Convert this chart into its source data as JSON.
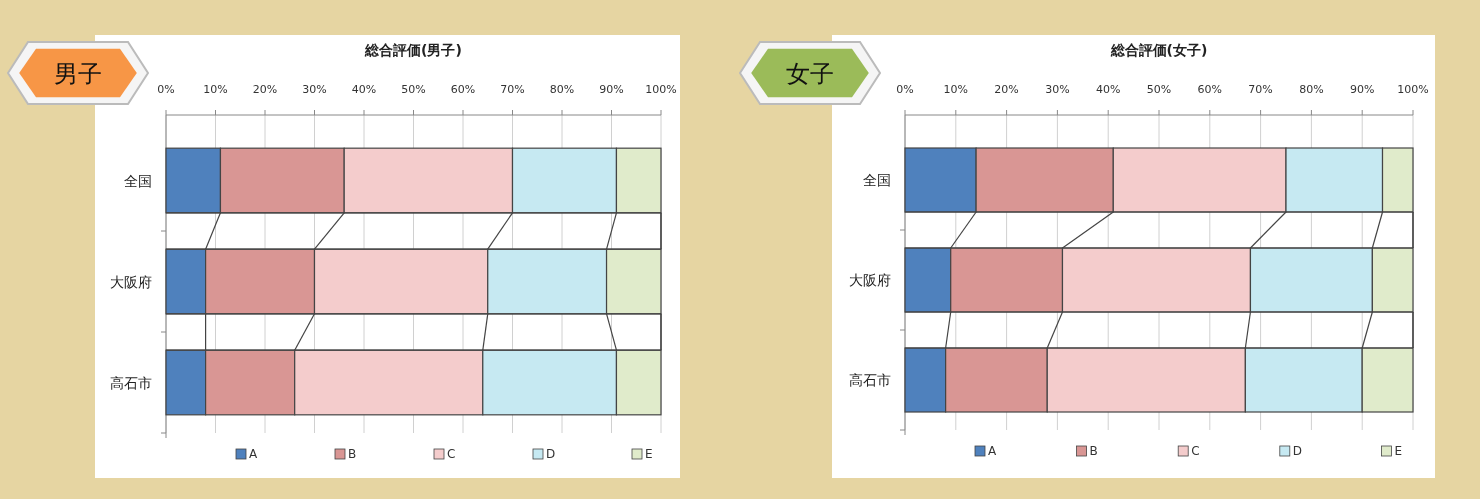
{
  "chart_data": [
    {
      "type": "bar",
      "orientation": "horizontal",
      "stacked": true,
      "title": "総合評価(男子)",
      "subtitle": "男子",
      "categories": [
        "全国",
        "大阪府",
        "高石市"
      ],
      "series": [
        {
          "name": "A",
          "color": "#4f81bd",
          "values": [
            11,
            8,
            8
          ]
        },
        {
          "name": "B",
          "color": "#d99694",
          "values": [
            25,
            22,
            18
          ]
        },
        {
          "name": "C",
          "color": "#f4cccc",
          "values": [
            34,
            35,
            38
          ]
        },
        {
          "name": "D",
          "color": "#c6e9f2",
          "values": [
            21,
            24,
            27
          ]
        },
        {
          "name": "E",
          "color": "#e0ebcb",
          "values": [
            9,
            11,
            9
          ]
        }
      ],
      "xlim": [
        0,
        100
      ],
      "xticks": [
        {
          "value": 0,
          "label": "0%"
        },
        {
          "value": 10,
          "label": "10%"
        },
        {
          "value": 20,
          "label": "20%"
        },
        {
          "value": 30,
          "label": "30%"
        },
        {
          "value": 40,
          "label": "40%"
        },
        {
          "value": 50,
          "label": "50%"
        },
        {
          "value": 60,
          "label": "60%"
        },
        {
          "value": 70,
          "label": "70%"
        },
        {
          "value": 80,
          "label": "80%"
        },
        {
          "value": 90,
          "label": "90%"
        },
        {
          "value": 100,
          "label": "100%"
        }
      ],
      "grid": "x",
      "legend": "bottom"
    },
    {
      "type": "bar",
      "orientation": "horizontal",
      "stacked": true,
      "title": "総合評価(女子)",
      "subtitle": "女子",
      "categories": [
        "全国",
        "大阪府",
        "高石市"
      ],
      "series": [
        {
          "name": "A",
          "color": "#4f81bd",
          "values": [
            14,
            9,
            8
          ]
        },
        {
          "name": "B",
          "color": "#d99694",
          "values": [
            27,
            22,
            20
          ]
        },
        {
          "name": "C",
          "color": "#f4cccc",
          "values": [
            34,
            37,
            39
          ]
        },
        {
          "name": "D",
          "color": "#c6e9f2",
          "values": [
            19,
            24,
            23
          ]
        },
        {
          "name": "E",
          "color": "#e0ebcb",
          "values": [
            6,
            8,
            10
          ]
        }
      ],
      "xlim": [
        0,
        100
      ],
      "xticks": [
        {
          "value": 0,
          "label": "0%"
        },
        {
          "value": 10,
          "label": "10%"
        },
        {
          "value": 20,
          "label": "20%"
        },
        {
          "value": 30,
          "label": "30%"
        },
        {
          "value": 40,
          "label": "40%"
        },
        {
          "value": 50,
          "label": "50%"
        },
        {
          "value": 60,
          "label": "60%"
        },
        {
          "value": 70,
          "label": "70%"
        },
        {
          "value": 80,
          "label": "80%"
        },
        {
          "value": 90,
          "label": "90%"
        },
        {
          "value": 100,
          "label": "100%"
        }
      ],
      "grid": "x",
      "legend": "bottom"
    }
  ]
}
